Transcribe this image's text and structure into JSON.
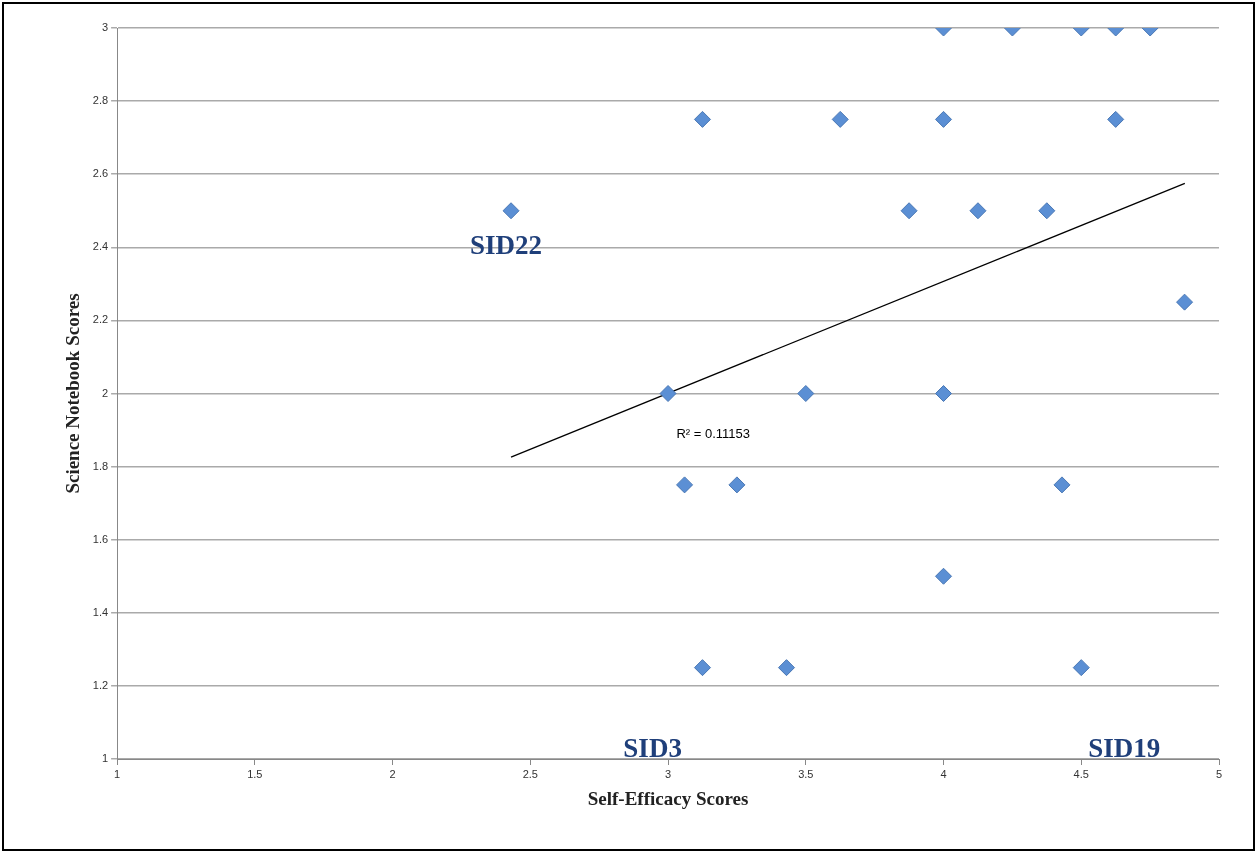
{
  "chart_data": {
    "type": "scatter",
    "xlabel": "Self-Efficacy Scores",
    "ylabel": "Science Notebook Scores",
    "xlim": [
      1,
      5
    ],
    "xticks": [
      1,
      1.5,
      2,
      2.5,
      3,
      3.5,
      4,
      4.5,
      5
    ],
    "ylim": [
      1,
      3
    ],
    "yticks": [
      1,
      1.2,
      1.4,
      1.6,
      1.8,
      2,
      2.2,
      2.4,
      2.6,
      2.8,
      3
    ],
    "grid": "y",
    "legend": false,
    "marker": "diamond",
    "series": [
      {
        "type": "scatter",
        "color": "#5b8fd4",
        "x": [
          4,
          4.25,
          4.5,
          4.625,
          4.75,
          3.125,
          3.625,
          4,
          4.625,
          2.43,
          3.875,
          4.125,
          4.375,
          4.875,
          3,
          3.5,
          4,
          3.06,
          3.25,
          4.43,
          4,
          3.125,
          3.43,
          4.5
        ],
        "values": [
          3,
          3,
          3,
          3,
          3,
          2.75,
          2.75,
          2.75,
          2.75,
          2.5,
          2.5,
          2.5,
          2.5,
          2.25,
          2,
          2,
          2,
          1.75,
          1.75,
          1.75,
          1.5,
          1.25,
          1.25,
          1.25
        ]
      },
      {
        "type": "line",
        "color": "#000000",
        "marker": "none",
        "x": [
          2.43,
          4.876
        ],
        "values": [
          1.826,
          2.575
        ]
      }
    ],
    "annotations": [
      "R² = 0.11153",
      "SID22",
      "SID3",
      "SID19"
    ]
  }
}
